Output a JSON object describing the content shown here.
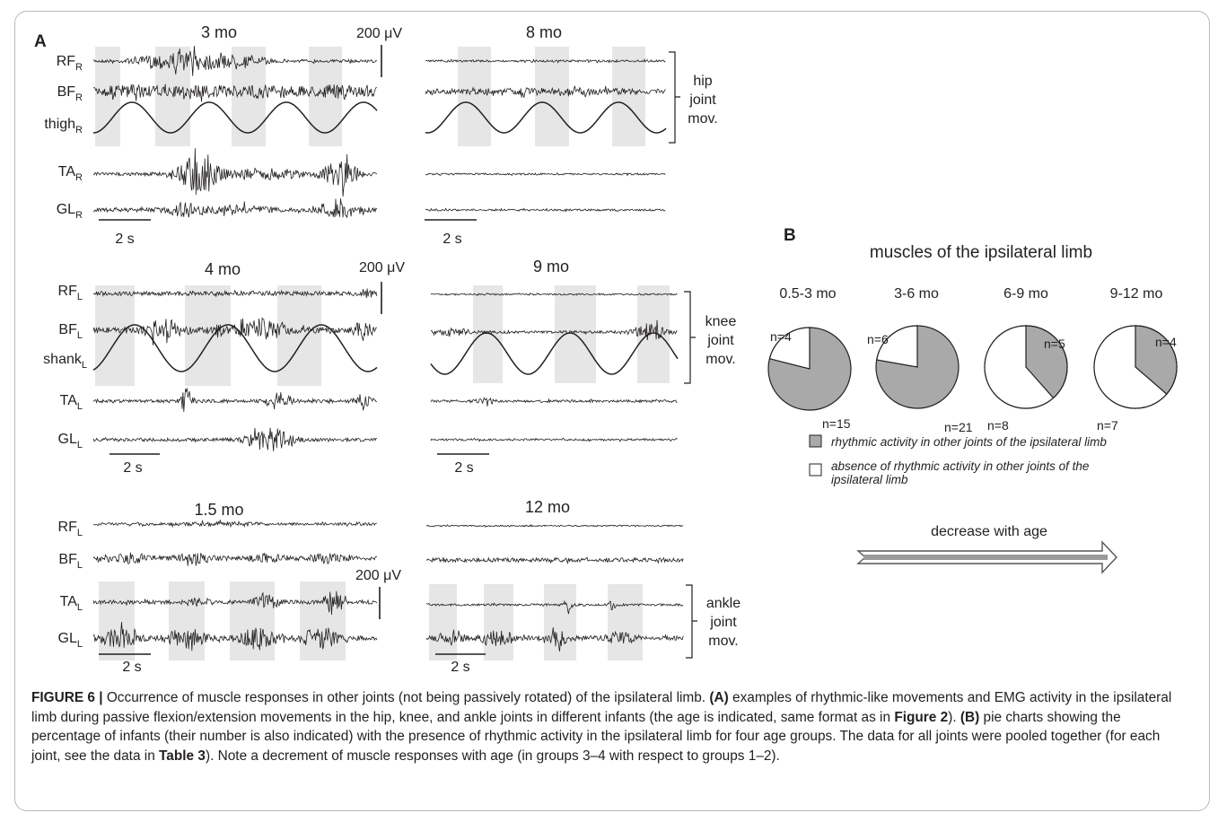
{
  "panel_a": {
    "label": "A",
    "blocks": [
      {
        "left": {
          "age": "3 mo",
          "scale": "200 μV",
          "channels": [
            {
              "name": "RF",
              "sub": "R"
            },
            {
              "name": "BF",
              "sub": "R"
            },
            {
              "name": "thigh",
              "sub": "R"
            },
            {
              "name": "TA",
              "sub": "R"
            },
            {
              "name": "GL",
              "sub": "R"
            }
          ],
          "time_bar": "2 s"
        },
        "right": {
          "age": "8 mo",
          "time_bar": "2 s"
        },
        "bracket_label": [
          "hip",
          "joint",
          "mov."
        ]
      },
      {
        "left": {
          "age": "4 mo",
          "scale": "200 μV",
          "channels": [
            {
              "name": "RF",
              "sub": "L"
            },
            {
              "name": "BF",
              "sub": "L"
            },
            {
              "name": "shank",
              "sub": "L"
            },
            {
              "name": "TA",
              "sub": "L"
            },
            {
              "name": "GL",
              "sub": "L"
            }
          ],
          "time_bar": "2 s"
        },
        "right": {
          "age": "9 mo",
          "time_bar": "2 s"
        },
        "bracket_label": [
          "knee",
          "joint",
          "mov."
        ]
      },
      {
        "left": {
          "age": "1.5 mo",
          "scale": "200 μV",
          "channels": [
            {
              "name": "RF",
              "sub": "L"
            },
            {
              "name": "BF",
              "sub": "L"
            },
            {
              "name": "TA",
              "sub": "L"
            },
            {
              "name": "GL",
              "sub": "L"
            }
          ],
          "time_bar": "2 s"
        },
        "right": {
          "age": "12 mo",
          "time_bar": "2 s"
        },
        "bracket_label": [
          "ankle",
          "joint",
          "mov."
        ]
      }
    ]
  },
  "panel_b": {
    "label": "B",
    "title": "muscles of the ipsilateral limb",
    "legend": {
      "rhythmic": "rhythmic activity in other joints of the ipsilateral limb",
      "absence_line1": "absence of rhythmic activity in other joints of the",
      "absence_line2": "ipsilateral limb"
    },
    "arrow_label": "decrease with age",
    "colors": {
      "rhythmic": "#a9a9a9",
      "absence": "#ffffff",
      "outline": "#231f20"
    }
  },
  "chart_data": {
    "type": "pie",
    "title": "muscles of the ipsilateral limb",
    "categories": [
      "rhythmic activity in other joints of the ipsilateral limb",
      "absence of rhythmic activity in other joints of the ipsilateral limb"
    ],
    "groups": [
      {
        "age": "0.5-3 mo",
        "rhythmic": 15,
        "absence": 4,
        "rhythmic_label": "n=15",
        "absence_label": "n=4"
      },
      {
        "age": "3-6 mo",
        "rhythmic": 21,
        "absence": 6,
        "rhythmic_label": "n=21",
        "absence_label": "n=6"
      },
      {
        "age": "6-9 mo",
        "rhythmic": 5,
        "absence": 8,
        "rhythmic_label": "n=5",
        "absence_label": "n=8"
      },
      {
        "age": "9-12 mo",
        "rhythmic": 4,
        "absence": 7,
        "rhythmic_label": "n=4",
        "absence_label": "n=7"
      }
    ]
  },
  "caption": {
    "label": "FIGURE 6 |",
    "text_1": " Occurrence of muscle responses in other joints (not being passively rotated) of the ipsilateral limb. ",
    "a_label": "(A)",
    "text_2": " examples of rhythmic-like movements and EMG activity in the ipsilateral limb during passive flexion/extension movements in the hip, knee, and ankle joints in different infants (the age is indicated, same format as in ",
    "fig_ref": "Figure 2",
    "text_3": "). ",
    "b_label": "(B)",
    "text_4": " pie charts showing the percentage of infants (their number is also indicated) with the presence of rhythmic activity in the ipsilateral limb for four age groups. The data for all joints were pooled together (for each joint, see the data in ",
    "table_ref": "Table 3",
    "text_5": "). Note a decrement of muscle responses with age (in groups 3–4 with respect to groups 1–2)."
  }
}
